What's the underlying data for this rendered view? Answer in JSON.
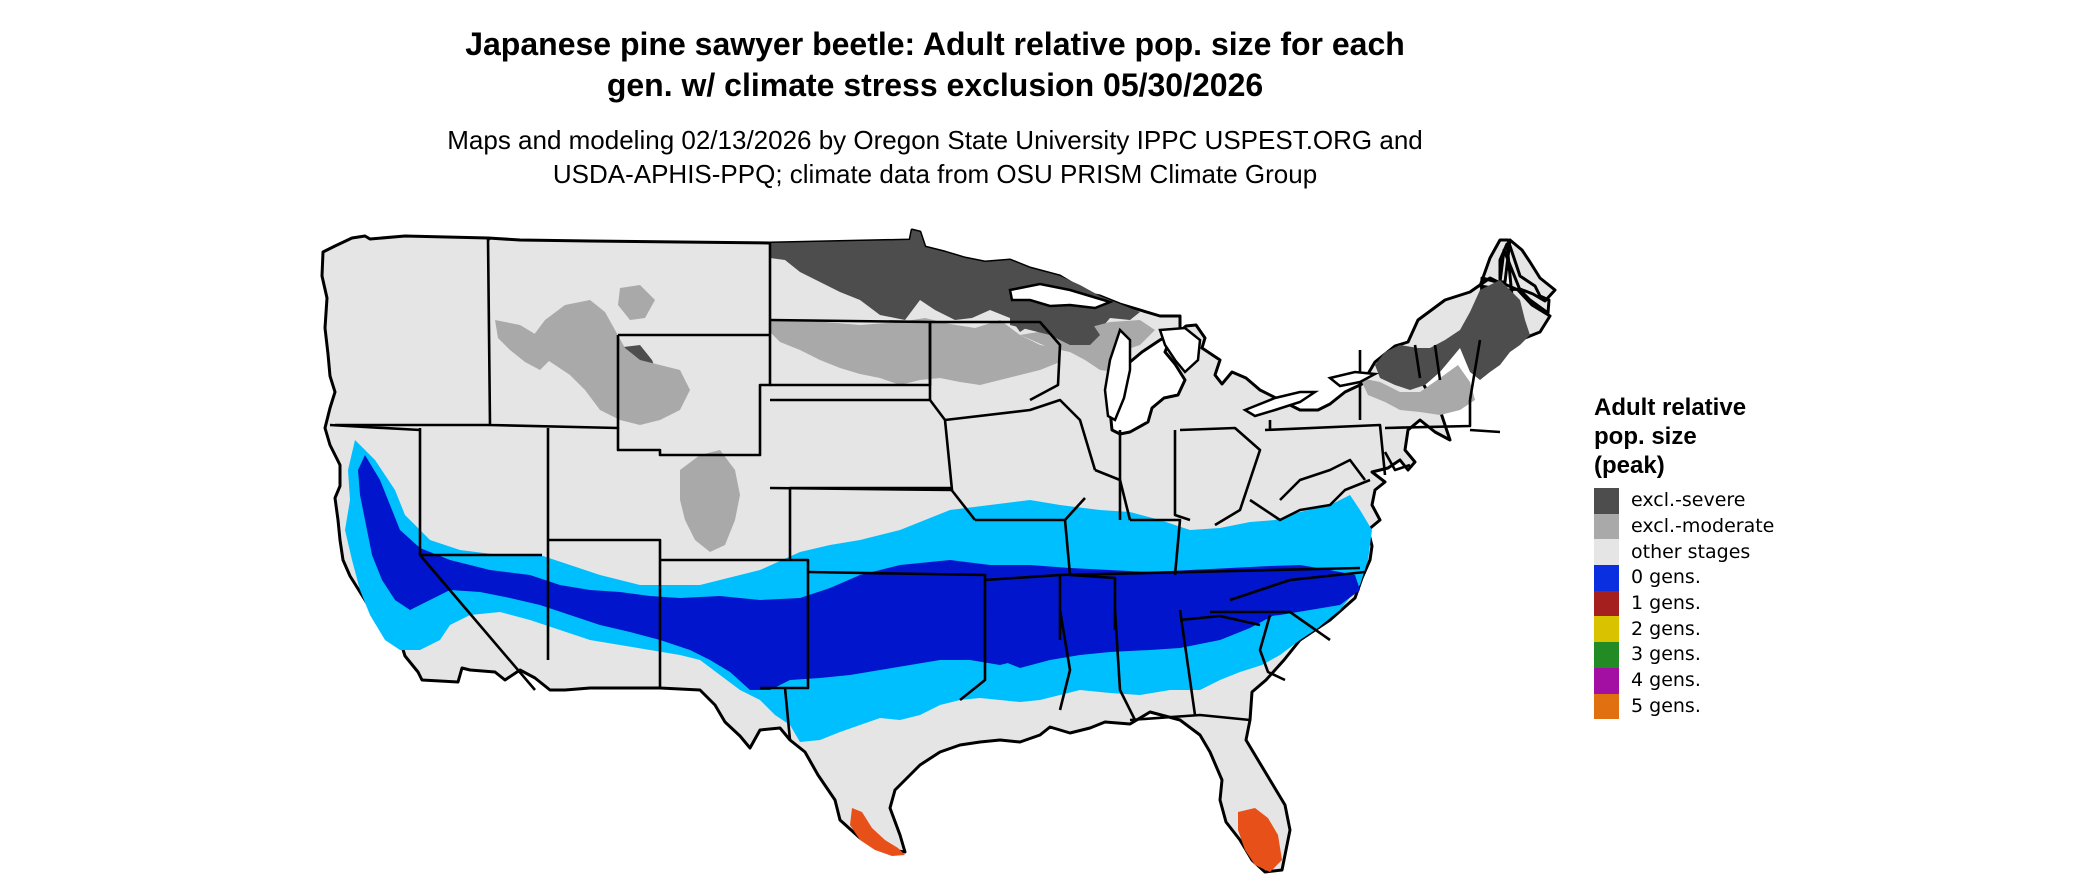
{
  "title": {
    "line1": "Japanese pine sawyer beetle: Adult relative pop. size for each",
    "line2": "gen. w/ climate stress exclusion 05/30/2026"
  },
  "subtitle": {
    "line1": "Maps and modeling 02/13/2026 by Oregon State University IPPC USPEST.ORG and",
    "line2": "USDA-APHIS-PPQ; climate data from OSU PRISM Climate Group"
  },
  "colors": {
    "background_land": "#e5e5e5",
    "state_border": "#000000",
    "excl_severe": "#4d4d4d",
    "excl_moderate": "#a9a9a9",
    "other_stages": "#e5e5e5",
    "gens_0_dark": "#0015cc",
    "gens_0_light": "#00bfff",
    "gens_5": "#e8501a"
  },
  "legend": {
    "title_line1": "Adult relative",
    "title_line2": "pop. size",
    "title_line3": "(peak)",
    "items": [
      {
        "label": "excl.-severe",
        "color": "#4d4d4d"
      },
      {
        "label": "excl.-moderate",
        "color": "#a9a9a9"
      },
      {
        "label": "other stages",
        "color": "#e5e5e5"
      },
      {
        "label": "0 gens.",
        "color": "#0a2fe0"
      },
      {
        "label": "1 gens.",
        "color": "#a51f1f"
      },
      {
        "label": "2 gens.",
        "color": "#d9c300"
      },
      {
        "label": "3 gens.",
        "color": "#238b23"
      },
      {
        "label": "4 gens.",
        "color": "#a30fa3"
      },
      {
        "label": "5 gens.",
        "color": "#e07010"
      }
    ]
  }
}
